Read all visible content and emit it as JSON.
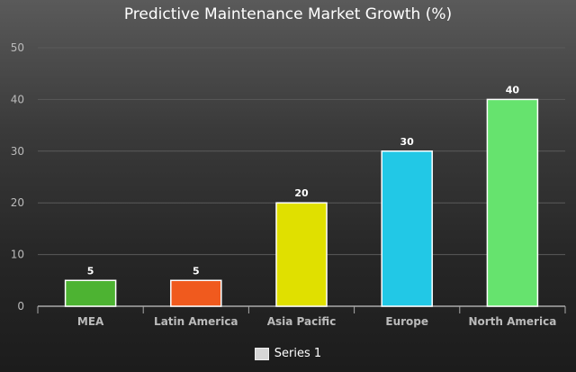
{
  "chart_data": {
    "type": "bar",
    "title": "Predictive Maintenance Market Growth (%)",
    "categories": [
      "MEA",
      "Latin America",
      "Asia Pacific",
      "Europe",
      "North America"
    ],
    "series": [
      {
        "name": "Series 1",
        "values": [
          5,
          5,
          20,
          30,
          40
        ]
      }
    ],
    "bar_colors": [
      "#4db332",
      "#f05a1e",
      "#e0e000",
      "#22c8e6",
      "#66e36e"
    ],
    "ylim": [
      0,
      50
    ],
    "yticks": [
      0,
      10,
      20,
      30,
      40,
      50
    ],
    "grid": true,
    "legend_position": "bottom",
    "colors": {
      "text": "#ffffff",
      "axis_text": "#bbbbbb",
      "grid": "#5a5a5a",
      "axis": "#aaaaaa",
      "legend_swatch": "#d6d6d6"
    }
  }
}
